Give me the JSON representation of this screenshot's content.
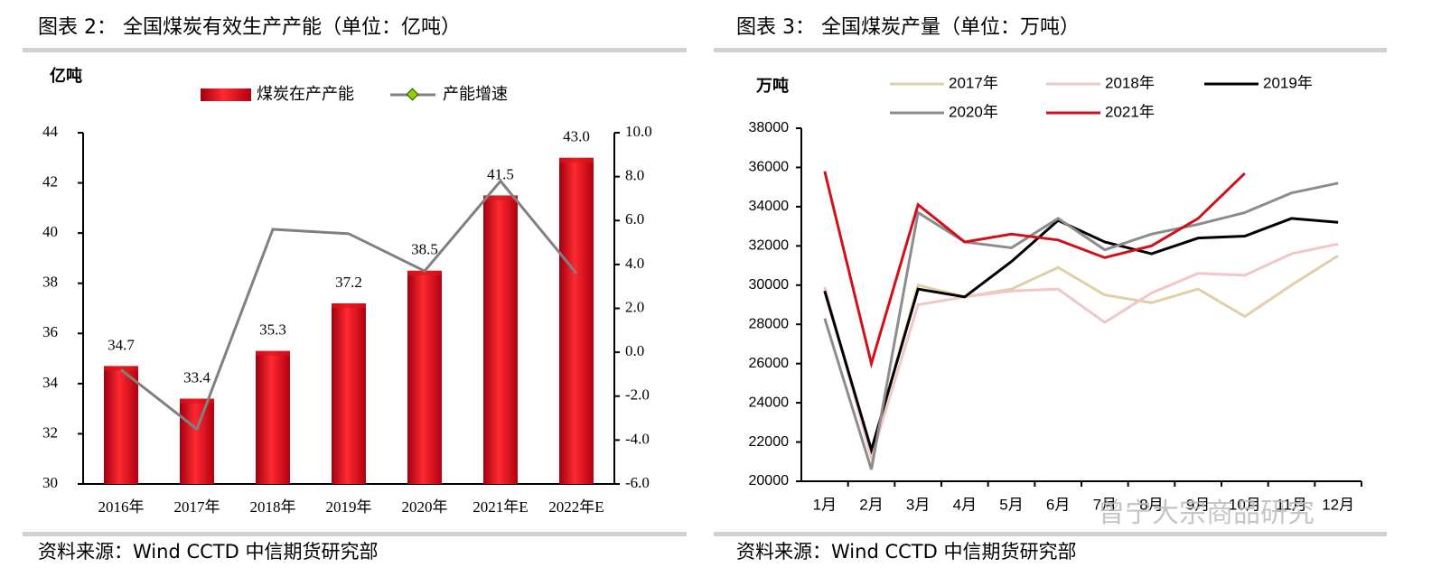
{
  "chart_data": [
    {
      "type": "bar",
      "title": "图表 2：  全国煤炭有效生产产能（单位：亿吨）",
      "source": "资料来源：Wind CCTD 中信期货研究部",
      "ylabel": "亿吨",
      "categories": [
        "2016年",
        "2017年",
        "2018年",
        "2019年",
        "2020年",
        "2021年E",
        "2022年E"
      ],
      "series": [
        {
          "name": "煤炭在产产能",
          "color": "#e0141c",
          "values": [
            34.7,
            33.4,
            35.3,
            37.2,
            38.5,
            41.5,
            43.0
          ],
          "value_labels": [
            "34.7",
            "33.4",
            "35.3",
            "37.2",
            "38.5",
            "41.5",
            "43.0"
          ]
        },
        {
          "name": "产能增速",
          "color": "#808080",
          "axis": "y2",
          "values": [
            -0.8,
            -3.5,
            5.6,
            5.4,
            3.7,
            7.8,
            3.6
          ]
        }
      ],
      "ylim": [
        30,
        44
      ],
      "yticks": [
        30,
        32,
        34,
        36,
        38,
        40,
        42,
        44
      ],
      "y2lim": [
        -6,
        10
      ],
      "y2ticks": [
        {
          "value": -6,
          "label": "-6.0"
        },
        {
          "value": -4,
          "label": "-4.0"
        },
        {
          "value": -2,
          "label": "-2.0"
        },
        {
          "value": 0,
          "label": "0.0"
        },
        {
          "value": 2,
          "label": "2.0"
        },
        {
          "value": 4,
          "label": "4.0"
        },
        {
          "value": 6,
          "label": "6.0"
        },
        {
          "value": 8,
          "label": "8.0"
        },
        {
          "value": 10,
          "label": "10.0"
        }
      ]
    },
    {
      "type": "line",
      "title": "图表 3：  全国煤炭产量（单位：万吨）",
      "source": "资料来源：Wind CCTD 中信期货研究部",
      "ylabel": "万吨",
      "watermark": "曾宁大宗商品研究",
      "categories": [
        "1月",
        "2月",
        "3月",
        "4月",
        "5月",
        "6月",
        "7月",
        "8月",
        "9月",
        "10月",
        "11月",
        "12月"
      ],
      "series": [
        {
          "name": "2017年",
          "color": "#e0d0a8",
          "values": [
            29800,
            21500,
            30000,
            29400,
            29800,
            30900,
            29500,
            29100,
            29800,
            28400,
            30000,
            31500
          ]
        },
        {
          "name": "2018年",
          "color": "#f2c6c6",
          "values": [
            29900,
            21200,
            29000,
            29400,
            29700,
            29800,
            28100,
            29600,
            30600,
            30500,
            31600,
            32100
          ]
        },
        {
          "name": "2019年",
          "color": "#000000",
          "values": [
            29700,
            21600,
            29800,
            29400,
            31200,
            33300,
            32200,
            31600,
            32400,
            32500,
            33400,
            33200
          ]
        },
        {
          "name": "2020年",
          "color": "#8c8c8c",
          "values": [
            28300,
            20600,
            33700,
            32200,
            31900,
            33400,
            31800,
            32600,
            33100,
            33700,
            34700,
            35200
          ]
        },
        {
          "name": "2021年",
          "color": "#d0101a",
          "values": [
            35800,
            26000,
            34100,
            32200,
            32600,
            32300,
            31400,
            32000,
            33400,
            35700,
            null,
            null
          ]
        }
      ],
      "ylim": [
        20000,
        38000
      ],
      "yticks": [
        20000,
        22000,
        24000,
        26000,
        28000,
        30000,
        32000,
        34000,
        36000,
        38000
      ]
    }
  ]
}
